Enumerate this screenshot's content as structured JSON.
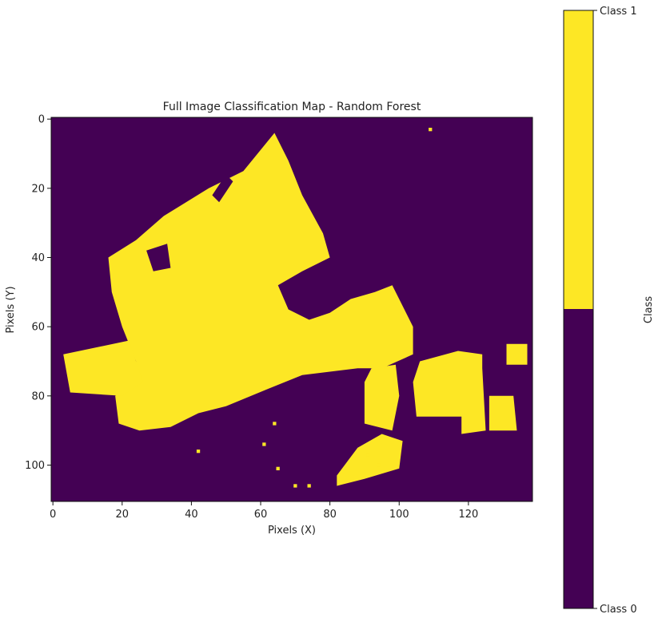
{
  "chart_data": {
    "type": "heatmap",
    "title": "Full Image Classification Map - Random Forest",
    "xlabel": "Pixels (X)",
    "ylabel": "Pixels (Y)",
    "xlim": [
      -0.5,
      138.5
    ],
    "ylim": [
      110.5,
      -0.5
    ],
    "x_ticks": [
      0,
      20,
      40,
      60,
      80,
      100,
      120
    ],
    "y_ticks": [
      0,
      20,
      40,
      60,
      80,
      100
    ],
    "grid": false,
    "colormap": {
      "class_0": "#440154",
      "class_1": "#fde725"
    },
    "colorbar": {
      "label": "Class",
      "ticks": [
        "Class 1",
        "Class 0"
      ],
      "boundary": 0.5
    },
    "class_1_regions": [
      {
        "name": "main-block",
        "polygon": [
          [
            24,
            35
          ],
          [
            32,
            28
          ],
          [
            45,
            20
          ],
          [
            55,
            15
          ],
          [
            64,
            4
          ],
          [
            68,
            12
          ],
          [
            72,
            22
          ],
          [
            78,
            33
          ],
          [
            80,
            40
          ],
          [
            72,
            44
          ],
          [
            65,
            48
          ],
          [
            68,
            55
          ],
          [
            74,
            58
          ],
          [
            80,
            56
          ],
          [
            86,
            52
          ],
          [
            93,
            50
          ],
          [
            98,
            48
          ],
          [
            104,
            60
          ],
          [
            104,
            68
          ],
          [
            95,
            72
          ],
          [
            88,
            72
          ],
          [
            72,
            74
          ],
          [
            62,
            78
          ],
          [
            50,
            83
          ],
          [
            42,
            85
          ],
          [
            34,
            89
          ],
          [
            25,
            90
          ],
          [
            19,
            88
          ],
          [
            18,
            80
          ],
          [
            24,
            76
          ],
          [
            24,
            70
          ],
          [
            20,
            60
          ],
          [
            17,
            50
          ],
          [
            16,
            40
          ]
        ]
      },
      {
        "name": "west-patch",
        "polygon": [
          [
            3,
            68
          ],
          [
            22,
            64
          ],
          [
            26,
            76
          ],
          [
            20,
            80
          ],
          [
            5,
            79
          ]
        ]
      },
      {
        "name": "east-big",
        "polygon": [
          [
            106,
            70
          ],
          [
            117,
            67
          ],
          [
            124,
            68
          ],
          [
            124,
            72
          ],
          [
            125,
            90
          ],
          [
            118,
            91
          ],
          [
            118,
            86
          ],
          [
            105,
            86
          ],
          [
            104,
            76
          ]
        ]
      },
      {
        "name": "lower-left-east",
        "polygon": [
          [
            92,
            72
          ],
          [
            99,
            71
          ],
          [
            100,
            80
          ],
          [
            98,
            90
          ],
          [
            90,
            88
          ],
          [
            90,
            76
          ]
        ]
      },
      {
        "name": "south-blob",
        "polygon": [
          [
            82,
            103
          ],
          [
            88,
            95
          ],
          [
            95,
            91
          ],
          [
            101,
            93
          ],
          [
            100,
            101
          ],
          [
            90,
            104
          ],
          [
            82,
            106
          ]
        ]
      },
      {
        "name": "far-east-top",
        "polygon": [
          [
            131,
            65
          ],
          [
            137,
            65
          ],
          [
            137,
            71
          ],
          [
            131,
            71
          ]
        ]
      },
      {
        "name": "far-east-bottom",
        "polygon": [
          [
            126,
            80
          ],
          [
            133,
            80
          ],
          [
            134,
            90
          ],
          [
            126,
            90
          ]
        ]
      }
    ],
    "class_0_holes": [
      {
        "name": "hole",
        "polygon": [
          [
            27,
            38
          ],
          [
            33,
            36
          ],
          [
            34,
            43
          ],
          [
            29,
            44
          ]
        ]
      },
      {
        "name": "hole-2",
        "polygon": [
          [
            46,
            22
          ],
          [
            50,
            16
          ],
          [
            52,
            18
          ],
          [
            48,
            24
          ]
        ]
      }
    ],
    "scattered_class_1": [
      [
        109,
        3
      ],
      [
        65,
        101
      ],
      [
        70,
        106
      ],
      [
        74,
        106
      ],
      [
        61,
        94
      ],
      [
        64,
        88
      ],
      [
        42,
        96
      ],
      [
        94,
        100
      ],
      [
        91,
        97
      ]
    ]
  }
}
